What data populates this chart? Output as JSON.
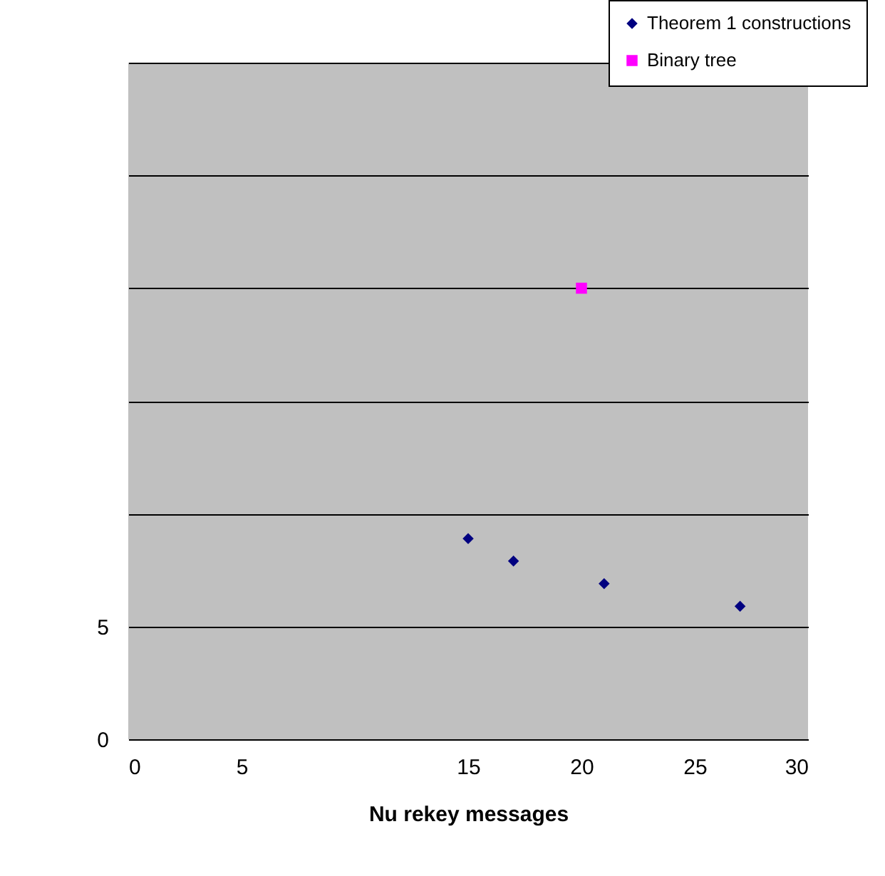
{
  "chart_data": {
    "type": "scatter",
    "xlabel": "Nu        rekey messages",
    "xlim": [
      0,
      30
    ],
    "xticks": [
      0,
      5,
      15,
      20,
      25,
      30
    ],
    "ylim": [
      0,
      30
    ],
    "yticks": [
      0,
      5,
      {
        "value": 10,
        "label": null
      },
      {
        "value": 15,
        "label": null
      },
      {
        "value": 20,
        "label": null
      },
      {
        "value": 25,
        "label": null
      },
      {
        "value": 30,
        "label": null
      }
    ],
    "grid": "y",
    "legend": "top right",
    "series": [
      {
        "name": "Theorem 1 constructions",
        "color": "#000080",
        "marker": "diamond",
        "x": [
          15,
          17,
          21,
          27
        ],
        "values": [
          8.9,
          7.9,
          6.9,
          5.9
        ]
      },
      {
        "name": "Binary tree",
        "color": "#ff00ff",
        "marker": "square",
        "x": [
          20
        ],
        "values": [
          20
        ]
      }
    ]
  }
}
